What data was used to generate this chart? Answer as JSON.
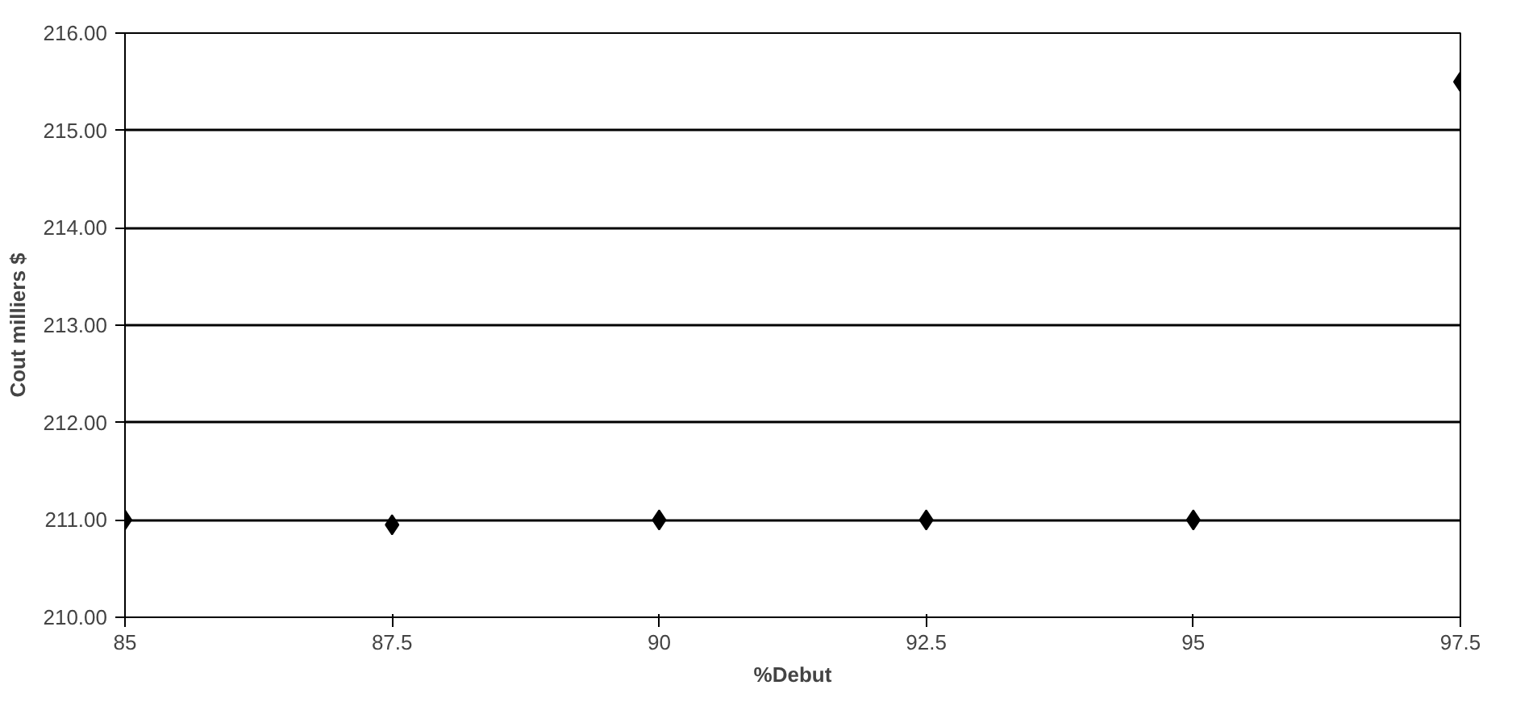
{
  "chart_data": {
    "type": "scatter",
    "xlabel": "%Debut",
    "ylabel": "Cout milliers $",
    "x": [
      85,
      87.5,
      90,
      92.5,
      95,
      97.5
    ],
    "series": [
      {
        "color": "#000000",
        "values": [
          211.0,
          210.95,
          211.0,
          211.0,
          211.0,
          215.5
        ]
      }
    ],
    "xlim": [
      85,
      97.5
    ],
    "xticks": [
      85,
      87.5,
      90,
      92.5,
      95,
      97.5
    ],
    "ylim": [
      210,
      216
    ],
    "yticks": [
      {
        "value": 210,
        "label": "210.00"
      },
      {
        "value": 211,
        "label": "211.00"
      },
      {
        "value": 212,
        "label": "212.00"
      },
      {
        "value": 213,
        "label": "213.00"
      },
      {
        "value": 214,
        "label": "214.00"
      },
      {
        "value": 215,
        "label": "215.00"
      },
      {
        "value": 216,
        "label": "216.00"
      }
    ],
    "grid": "y",
    "marker": "diamond"
  }
}
